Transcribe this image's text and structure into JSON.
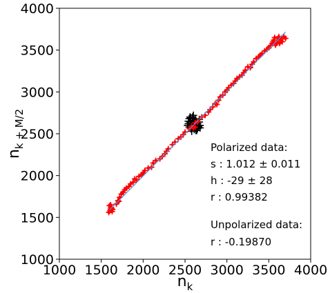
{
  "chart_data": {
    "type": "scatter",
    "title": "",
    "xlabel": {
      "base": "n",
      "sub": "k"
    },
    "ylabel": {
      "base": "n",
      "sub": "k + M/2"
    },
    "xlim": [
      1000,
      4000
    ],
    "ylim": [
      1000,
      4000
    ],
    "xticks": [
      "1000",
      "1500",
      "2000",
      "2500",
      "3000",
      "3500",
      "4000"
    ],
    "yticks": [
      "1000",
      "1500",
      "2000",
      "2500",
      "3000",
      "3500",
      "4000"
    ],
    "grid": false,
    "legend": "none",
    "colors": {
      "polarized": "#ff0000",
      "unpolarized": "#000000",
      "fit": "#4a90d9"
    },
    "fit_line": {
      "x": [
        1600,
        3700
      ],
      "y": [
        1590,
        3716
      ]
    },
    "series": [
      {
        "marker": "cross-with-dot",
        "xerr": 35,
        "yerr": 35,
        "x": [
          1590,
          1605,
          1610,
          1615,
          1620,
          1598,
          1625,
          1630,
          1612,
          1635,
          1680,
          1700,
          1710,
          1720,
          1740,
          1760,
          1780,
          1800,
          1830,
          1850,
          1880,
          1900,
          1920,
          1950,
          1980,
          2000,
          2020,
          2060,
          2100,
          2120,
          2150,
          2200,
          2230,
          2260,
          2280,
          2300,
          2350,
          2380,
          2420,
          2450,
          2480,
          2500,
          2550,
          2580,
          2620,
          2650,
          2700,
          2740,
          2780,
          2800,
          2830,
          2860,
          2880,
          2900,
          2920,
          2950,
          2980,
          3000,
          3020,
          3050,
          3080,
          3100,
          3120,
          3150,
          3180,
          3200,
          3220,
          3250,
          3280,
          3300,
          3320,
          3350,
          3380,
          3400,
          3420,
          3450,
          3480,
          3500,
          3520,
          3540,
          3550,
          3560,
          3570,
          3580,
          3590,
          3600,
          3610,
          3620,
          3630,
          3640,
          3650,
          3660,
          3680,
          3700,
          2600,
          2620,
          2650
        ],
        "y": [
          1560,
          1580,
          1600,
          1620,
          1590,
          1640,
          1610,
          1570,
          1650,
          1595,
          1660,
          1700,
          1690,
          1740,
          1780,
          1800,
          1830,
          1850,
          1870,
          1900,
          1920,
          1960,
          1950,
          1990,
          2010,
          2030,
          2060,
          2090,
          2100,
          2150,
          2180,
          2200,
          2230,
          2260,
          2290,
          2320,
          2370,
          2400,
          2440,
          2460,
          2490,
          2520,
          2560,
          2590,
          2630,
          2650,
          2700,
          2720,
          2760,
          2790,
          2820,
          2860,
          2850,
          2900,
          2940,
          2960,
          3000,
          3020,
          3050,
          3080,
          3100,
          3130,
          3160,
          3180,
          3200,
          3230,
          3260,
          3300,
          3290,
          3330,
          3360,
          3400,
          3420,
          3440,
          3460,
          3490,
          3510,
          3530,
          3550,
          3580,
          3600,
          3620,
          3650,
          3560,
          3580,
          3600,
          3640,
          3660,
          3580,
          3620,
          3640,
          3600,
          3660,
          3640,
          2570,
          2580,
          2640
        ]
      },
      {
        "marker": "cross",
        "xerr": 45,
        "yerr": 45,
        "x": [
          2530,
          2540,
          2550,
          2560,
          2570,
          2580,
          2590,
          2600,
          2610,
          2620,
          2630,
          2640,
          2650,
          2660,
          2670,
          2680,
          2550,
          2570,
          2590,
          2610,
          2630,
          2650,
          2670,
          2560,
          2580,
          2600,
          2620,
          2640,
          2660,
          2540,
          2600,
          2620,
          2560,
          2640,
          2580,
          2680
        ],
        "y": [
          2600,
          2620,
          2580,
          2640,
          2560,
          2610,
          2660,
          2590,
          2630,
          2570,
          2650,
          2600,
          2620,
          2580,
          2640,
          2600,
          2680,
          2690,
          2700,
          2550,
          2540,
          2560,
          2670,
          2620,
          2600,
          2640,
          2610,
          2630,
          2590,
          2650,
          2720,
          2680,
          2700,
          2540,
          2530,
          2570
        ]
      }
    ],
    "annotations": [
      "Polarized data:",
      "s : 1.012 ± 0.011",
      "h : -29 ±  28",
      "r : 0.99382",
      "Unpolarized data:",
      "r : -0.19870"
    ]
  }
}
